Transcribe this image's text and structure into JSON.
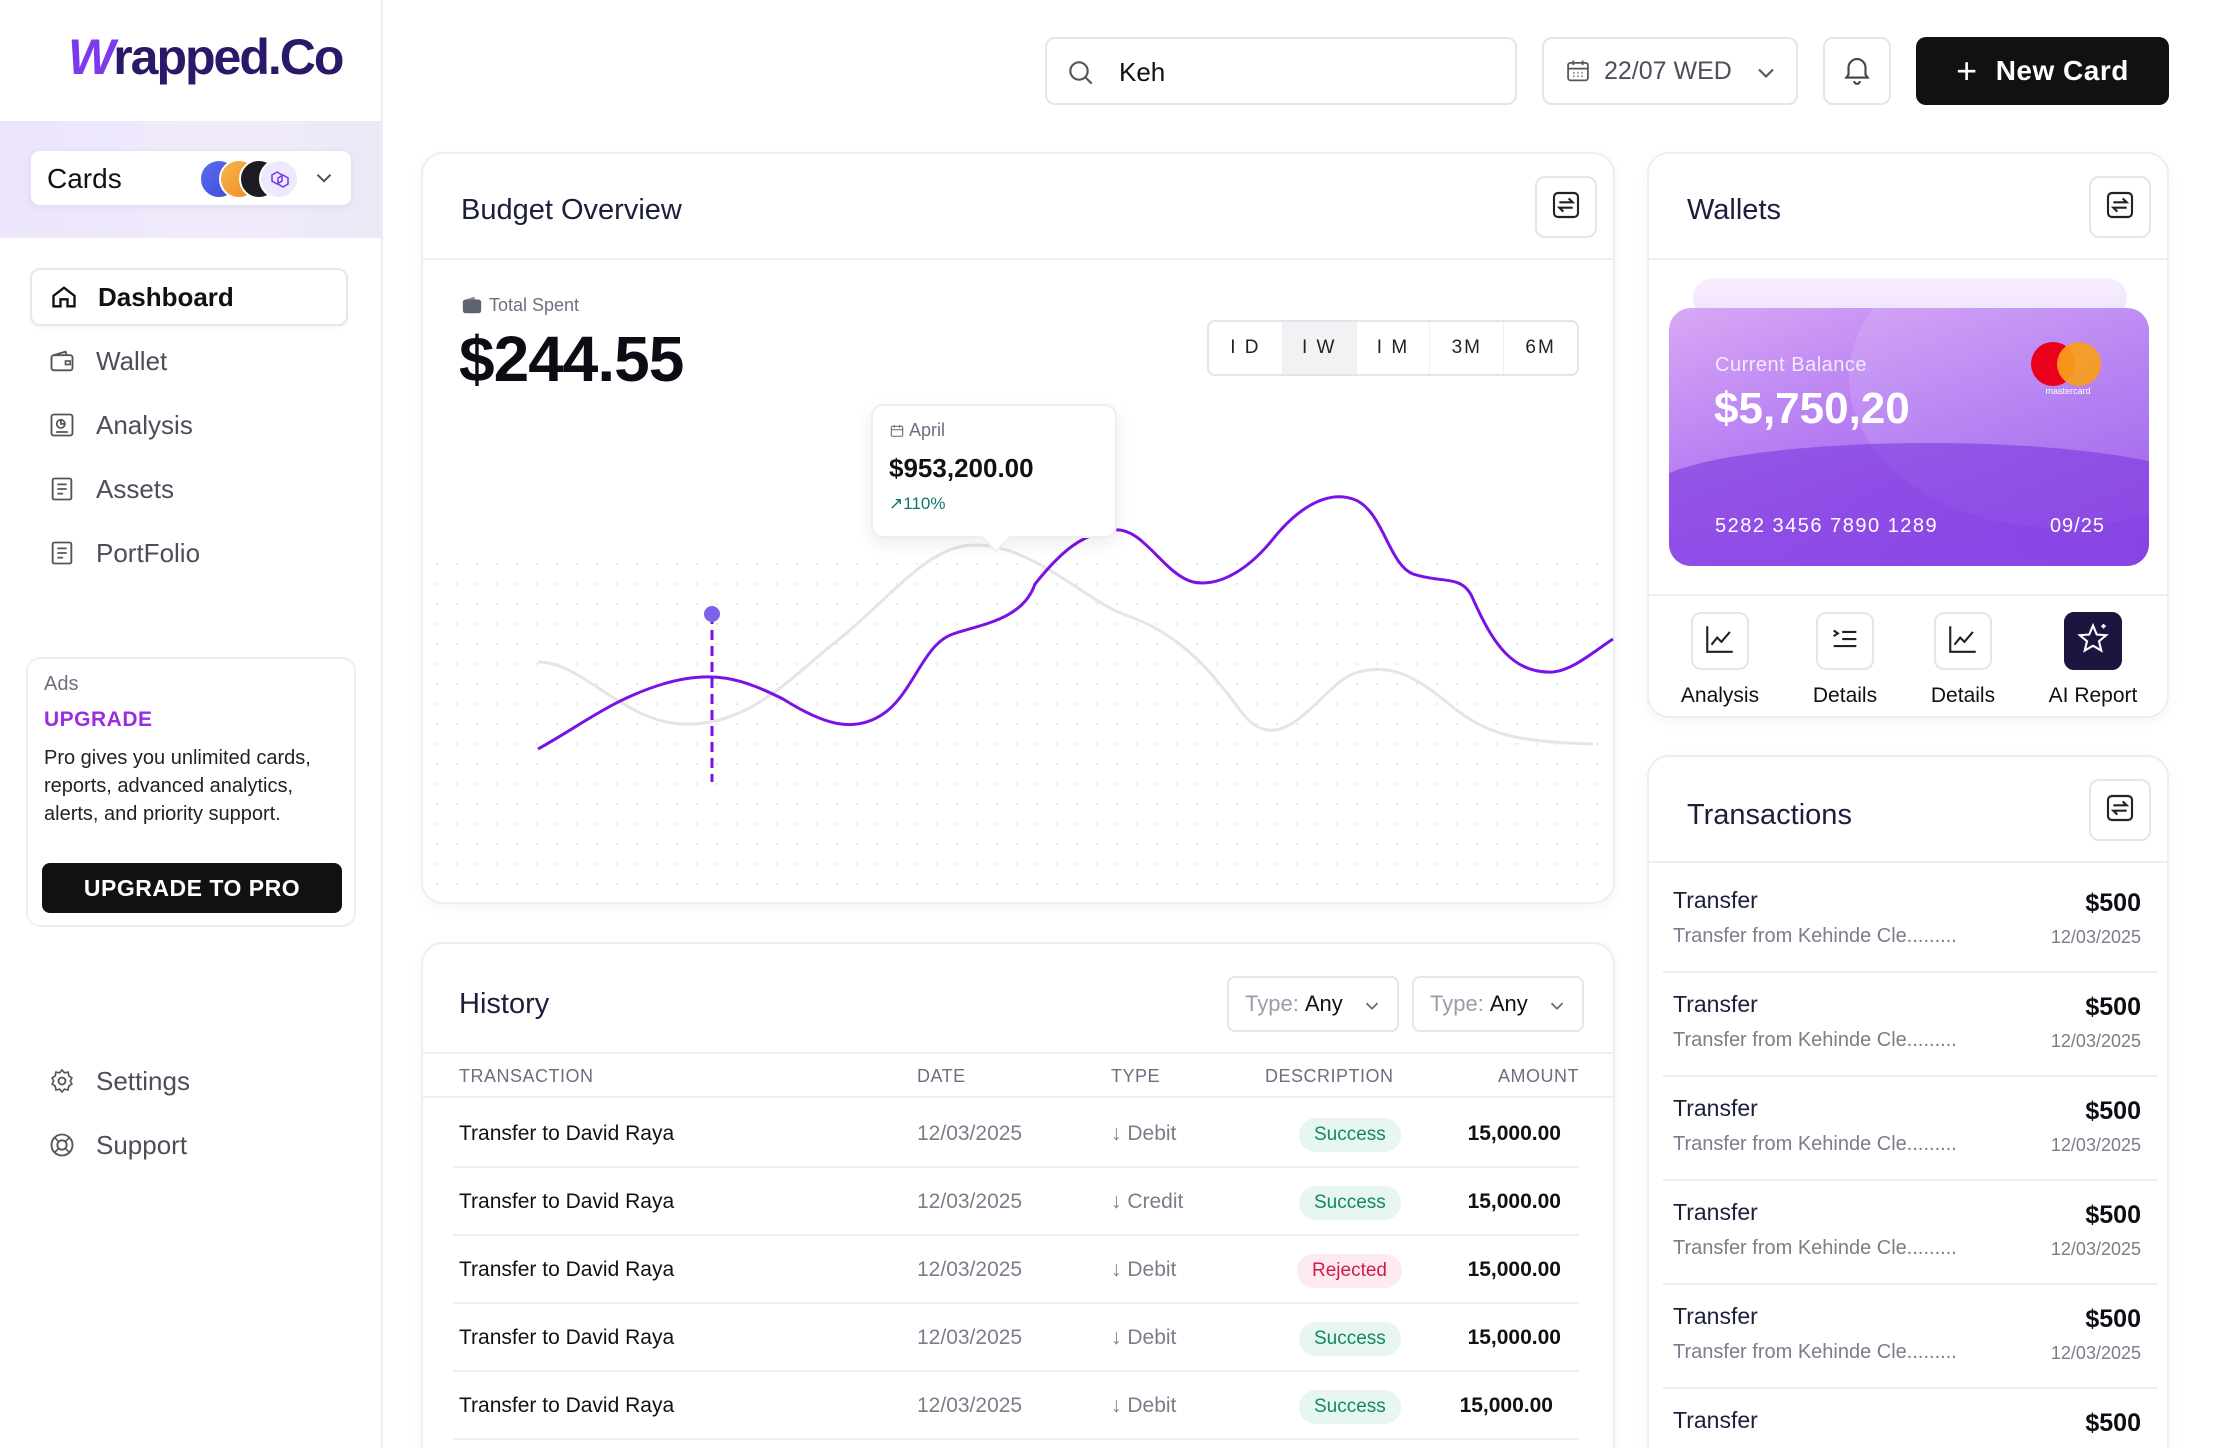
{
  "brand": {
    "logo_w": "W",
    "logo_rest": "rapped.Co"
  },
  "sidebar": {
    "cards_label": "Cards",
    "nav": [
      {
        "label": "Dashboard",
        "icon": "home-icon",
        "active": true
      },
      {
        "label": "Wallet",
        "icon": "wallet-icon"
      },
      {
        "label": "Analysis",
        "icon": "analysis-icon"
      },
      {
        "label": "Assets",
        "icon": "assets-icon"
      },
      {
        "label": "PortFolio",
        "icon": "portfolio-icon"
      }
    ],
    "ads": {
      "tag": "Ads",
      "title": "UPGRADE",
      "text": "Pro gives you unlimited cards, reports, advanced analytics, alerts, and priority support.",
      "button": "UPGRADE TO PRO"
    },
    "bottom": [
      {
        "label": "Settings",
        "icon": "gear-icon"
      },
      {
        "label": "Support",
        "icon": "support-icon"
      }
    ]
  },
  "topbar": {
    "search_value": "Keh",
    "date": "22/07 WED",
    "new_card": "New Card"
  },
  "budget": {
    "title": "Budget Overview",
    "total_label": "Total Spent",
    "total_value": "$244.55",
    "ranges": [
      "I D",
      "I W",
      "I M",
      "3M",
      "6M"
    ],
    "active_range": 1,
    "tooltip": {
      "month": "April",
      "value": "$953,200.00",
      "change": "110%"
    }
  },
  "history": {
    "title": "History",
    "filters": [
      {
        "key": "Type:",
        "value": "Any"
      },
      {
        "key": "Type:",
        "value": "Any"
      }
    ],
    "columns": [
      "TRANSACTION",
      "DATE",
      "TYPE",
      "DESCRIPTION",
      "AMOUNT"
    ],
    "rows": [
      {
        "name": "Transfer to David Raya",
        "date": "12/03/2025",
        "type": "Debit",
        "status": "Success",
        "amount": "15,000.00"
      },
      {
        "name": "Transfer to David Raya",
        "date": "12/03/2025",
        "type": "Credit",
        "status": "Success",
        "amount": "15,000.00"
      },
      {
        "name": "Transfer to David Raya",
        "date": "12/03/2025",
        "type": "Debit",
        "status": "Rejected",
        "amount": "15,000.00"
      },
      {
        "name": "Transfer to David Raya",
        "date": "12/03/2025",
        "type": "Debit",
        "status": "Success",
        "amount": "15,000.00"
      },
      {
        "name": "Transfer to David Raya",
        "date": "12/03/2025",
        "type": "Debit",
        "status": "Success",
        "amount": "15,000.00"
      }
    ]
  },
  "wallets": {
    "title": "Wallets",
    "card": {
      "balance_label": "Current Balance",
      "balance": "$5,750,20",
      "number": "5282 3456 7890 1289",
      "expiry": "09/25",
      "brand_text": "mastercard"
    },
    "actions": [
      {
        "label": "Analysis",
        "icon": "line-chart-icon"
      },
      {
        "label": "Details",
        "icon": "list-icon"
      },
      {
        "label": "Details",
        "icon": "line-chart-icon"
      },
      {
        "label": "AI Report",
        "icon": "sparkle-star-icon"
      }
    ]
  },
  "transactions": {
    "title": "Transactions",
    "items": [
      {
        "title": "Transfer",
        "desc": "Transfer  from Kehinde Cle.........",
        "amount": "$500",
        "date": "12/03/2025"
      },
      {
        "title": "Transfer",
        "desc": "Transfer  from Kehinde Cle.........",
        "amount": "$500",
        "date": "12/03/2025"
      },
      {
        "title": "Transfer",
        "desc": "Transfer  from Kehinde Cle.........",
        "amount": "$500",
        "date": "12/03/2025"
      },
      {
        "title": "Transfer",
        "desc": "Transfer  from Kehinde Cle.........",
        "amount": "$500",
        "date": "12/03/2025"
      },
      {
        "title": "Transfer",
        "desc": "Transfer  from Kehinde Cle.........",
        "amount": "$500",
        "date": "12/03/2025"
      },
      {
        "title": "Transfer",
        "desc": "",
        "amount": "$500",
        "date": ""
      }
    ]
  },
  "colors": {
    "accent": "#7c3aed",
    "dark": "#111111",
    "success": "#0f8a5f",
    "danger": "#d11b4a"
  }
}
